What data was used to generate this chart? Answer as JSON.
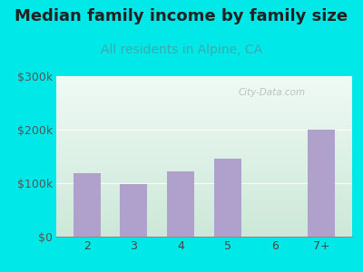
{
  "title": "Median family income by family size",
  "subtitle": "All residents in Alpine, CA",
  "categories": [
    "2",
    "3",
    "4",
    "5",
    "6",
    "7+"
  ],
  "values": [
    118000,
    98000,
    122000,
    145000,
    0,
    200000
  ],
  "bar_color": "#b0a0cc",
  "title_fontsize": 13,
  "subtitle_fontsize": 10,
  "subtitle_color": "#3aacac",
  "title_color": "#222222",
  "background_outer": "#00e8e8",
  "background_inner_top": "#f0faf5",
  "background_inner_bottom": "#cce8d8",
  "ylim": [
    0,
    300000
  ],
  "yticks": [
    0,
    100000,
    200000,
    300000
  ],
  "ytick_labels": [
    "$0",
    "$100k",
    "$200k",
    "$300k"
  ],
  "watermark": "City-Data.com"
}
